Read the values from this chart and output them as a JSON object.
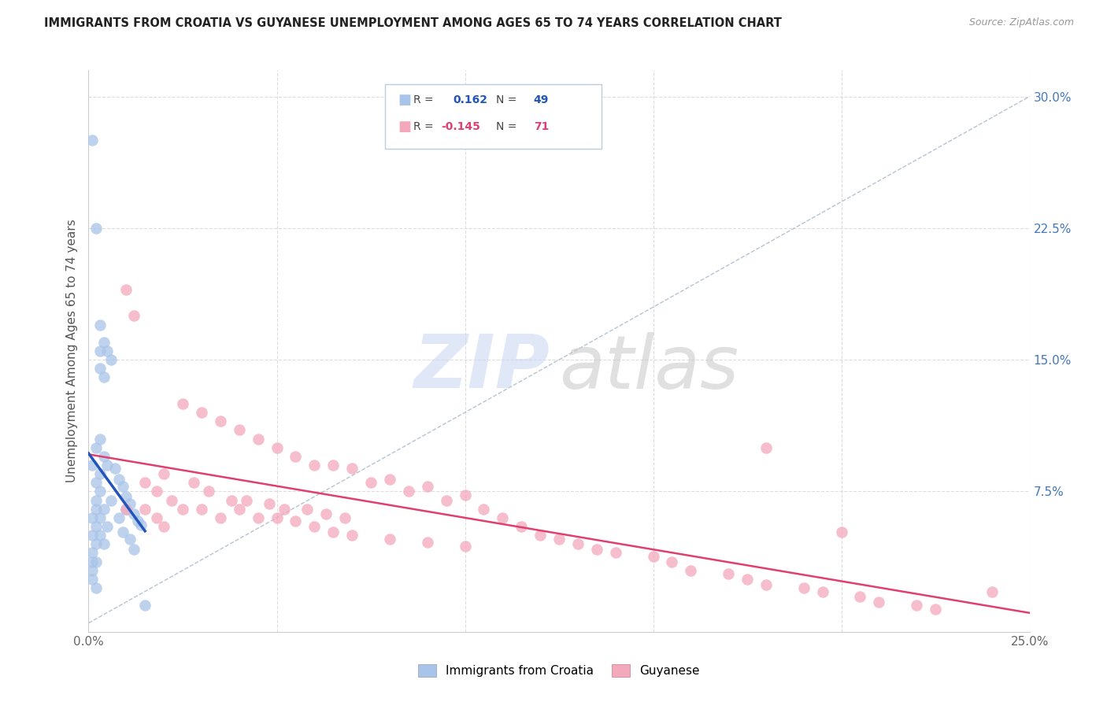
{
  "title": "IMMIGRANTS FROM CROATIA VS GUYANESE UNEMPLOYMENT AMONG AGES 65 TO 74 YEARS CORRELATION CHART",
  "source": "Source: ZipAtlas.com",
  "ylabel": "Unemployment Among Ages 65 to 74 years",
  "xlim": [
    0,
    0.25
  ],
  "ylim": [
    -0.005,
    0.315
  ],
  "croatia_R": 0.162,
  "croatia_N": 49,
  "guyanese_R": -0.145,
  "guyanese_N": 71,
  "croatia_color": "#a8c4e8",
  "guyanese_color": "#f4a8bc",
  "croatia_trend_color": "#2255bb",
  "guyanese_trend_color": "#e04070",
  "ref_line_color": "#99aabb",
  "grid_color": "#dddddd",
  "croatia_x": [
    0.001,
    0.001,
    0.001,
    0.001,
    0.001,
    0.001,
    0.001,
    0.001,
    0.002,
    0.002,
    0.002,
    0.002,
    0.002,
    0.002,
    0.002,
    0.002,
    0.002,
    0.003,
    0.003,
    0.003,
    0.003,
    0.003,
    0.003,
    0.003,
    0.004,
    0.004,
    0.004,
    0.004,
    0.004,
    0.005,
    0.005,
    0.005,
    0.006,
    0.006,
    0.007,
    0.008,
    0.008,
    0.009,
    0.009,
    0.01,
    0.01,
    0.011,
    0.011,
    0.012,
    0.012,
    0.013,
    0.014,
    0.015,
    0.003
  ],
  "croatia_y": [
    0.275,
    0.09,
    0.06,
    0.05,
    0.04,
    0.035,
    0.03,
    0.025,
    0.225,
    0.1,
    0.08,
    0.07,
    0.065,
    0.055,
    0.045,
    0.035,
    0.02,
    0.17,
    0.155,
    0.105,
    0.085,
    0.075,
    0.06,
    0.05,
    0.16,
    0.14,
    0.095,
    0.065,
    0.045,
    0.155,
    0.09,
    0.055,
    0.15,
    0.07,
    0.088,
    0.082,
    0.06,
    0.078,
    0.052,
    0.072,
    0.065,
    0.068,
    0.048,
    0.062,
    0.042,
    0.058,
    0.056,
    0.01,
    0.145
  ],
  "guyanese_x": [
    0.01,
    0.01,
    0.012,
    0.015,
    0.015,
    0.018,
    0.018,
    0.02,
    0.02,
    0.022,
    0.025,
    0.025,
    0.028,
    0.03,
    0.03,
    0.032,
    0.035,
    0.035,
    0.038,
    0.04,
    0.04,
    0.042,
    0.045,
    0.045,
    0.048,
    0.05,
    0.05,
    0.052,
    0.055,
    0.055,
    0.058,
    0.06,
    0.06,
    0.063,
    0.065,
    0.065,
    0.068,
    0.07,
    0.07,
    0.075,
    0.08,
    0.08,
    0.085,
    0.09,
    0.09,
    0.095,
    0.1,
    0.1,
    0.105,
    0.11,
    0.115,
    0.12,
    0.125,
    0.13,
    0.135,
    0.14,
    0.15,
    0.155,
    0.16,
    0.17,
    0.175,
    0.18,
    0.19,
    0.195,
    0.2,
    0.205,
    0.21,
    0.22,
    0.225,
    0.24,
    0.18
  ],
  "guyanese_y": [
    0.19,
    0.065,
    0.175,
    0.08,
    0.065,
    0.075,
    0.06,
    0.085,
    0.055,
    0.07,
    0.125,
    0.065,
    0.08,
    0.12,
    0.065,
    0.075,
    0.115,
    0.06,
    0.07,
    0.11,
    0.065,
    0.07,
    0.105,
    0.06,
    0.068,
    0.1,
    0.06,
    0.065,
    0.095,
    0.058,
    0.065,
    0.09,
    0.055,
    0.062,
    0.09,
    0.052,
    0.06,
    0.088,
    0.05,
    0.08,
    0.082,
    0.048,
    0.075,
    0.078,
    0.046,
    0.07,
    0.073,
    0.044,
    0.065,
    0.06,
    0.055,
    0.05,
    0.048,
    0.045,
    0.042,
    0.04,
    0.038,
    0.035,
    0.03,
    0.028,
    0.025,
    0.022,
    0.02,
    0.018,
    0.052,
    0.015,
    0.012,
    0.01,
    0.008,
    0.018,
    0.1
  ]
}
